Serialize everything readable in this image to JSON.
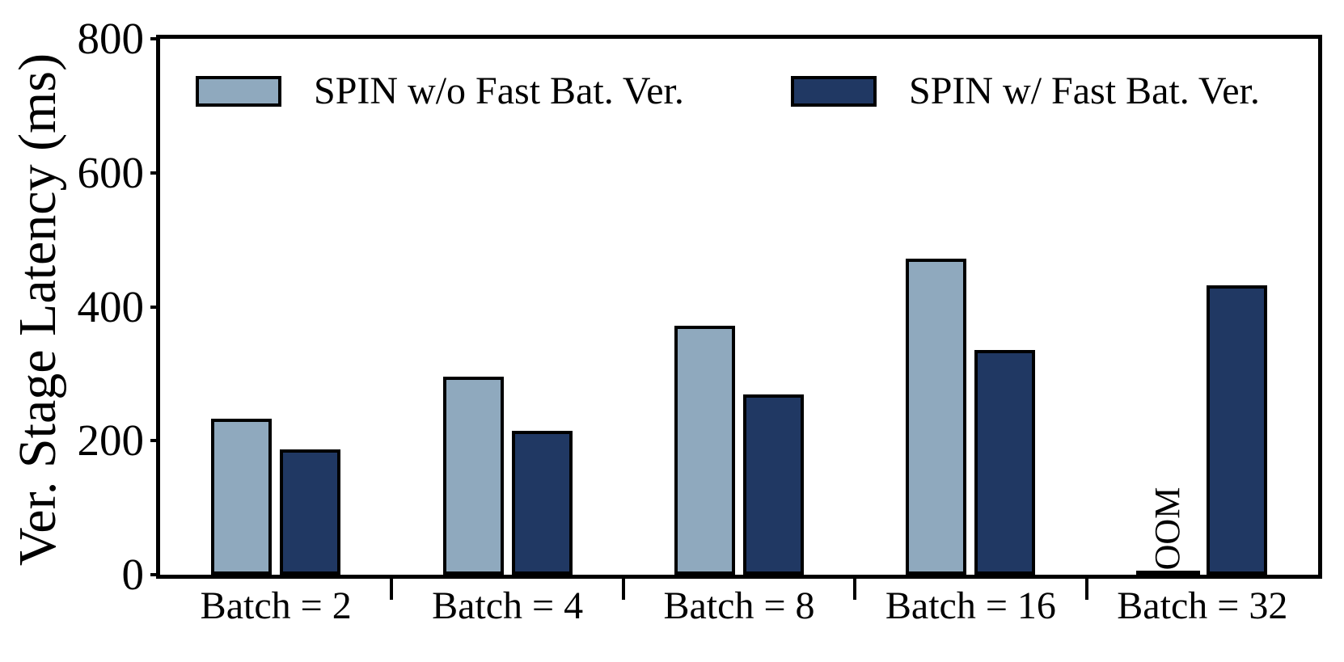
{
  "chart_data": {
    "type": "bar",
    "title": "",
    "xlabel": "",
    "ylabel": "Ver. Stage Latency (ms)",
    "ylim": [
      0,
      800
    ],
    "yticks": [
      "0",
      "200",
      "400",
      "600",
      "800"
    ],
    "ytick_values": [
      0,
      200,
      400,
      600,
      800
    ],
    "categories": [
      "Batch = 2",
      "Batch = 4",
      "Batch = 8",
      "Batch = 16",
      "Batch = 32"
    ],
    "series": [
      {
        "name": "SPIN w/o Fast Bat. Ver.",
        "color": "#8FA9BE",
        "values": [
          233,
          296,
          372,
          472,
          null
        ]
      },
      {
        "name": "SPIN w/ Fast Bat. Ver.",
        "color": "#203863",
        "values": [
          187,
          215,
          269,
          336,
          432
        ]
      }
    ],
    "annotations": [
      {
        "text": "OOM",
        "category": "Batch = 32",
        "series": "SPIN w/o Fast Bat. Ver.",
        "rotation_deg": 90
      }
    ],
    "oom_label": "OOM",
    "legend_position": "top-inside",
    "grid": false,
    "bar_edge_color": "#000000",
    "axis_color": "#000000"
  }
}
